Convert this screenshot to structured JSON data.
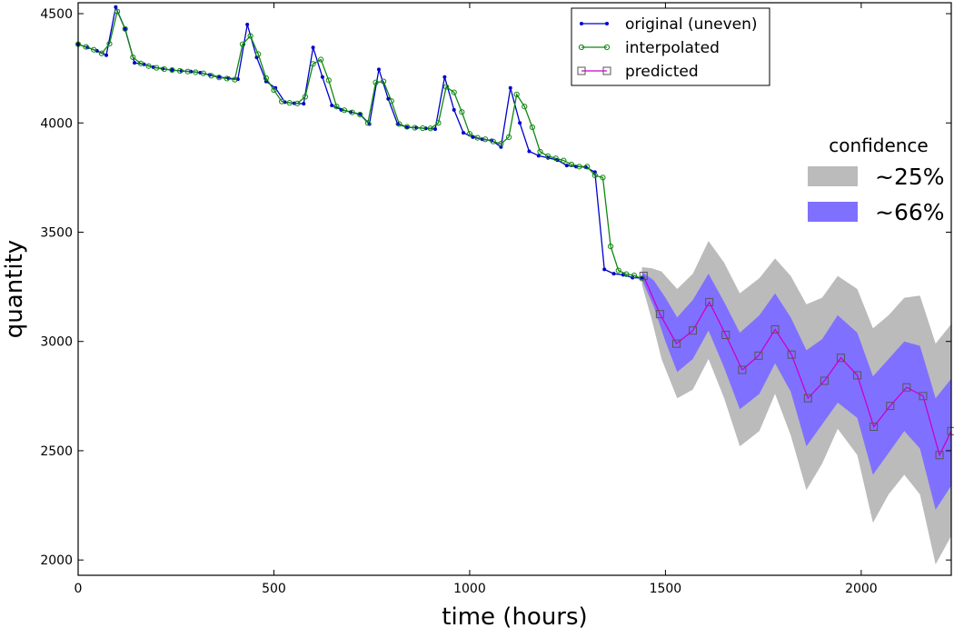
{
  "chart_data": {
    "type": "line",
    "xlabel": "time (hours)",
    "ylabel": "quantity",
    "xlim": [
      0,
      2230
    ],
    "ylim": [
      1930,
      4550
    ],
    "x_ticks": [
      0,
      500,
      1000,
      1500,
      2000
    ],
    "y_ticks": [
      2000,
      2500,
      3000,
      3500,
      4000,
      4500
    ],
    "grid": false,
    "legend_position": "top-center",
    "series": [
      {
        "name": "original (uneven)",
        "color": "#0000cc",
        "marker": "dot",
        "points": [
          [
            0,
            4360
          ],
          [
            24,
            4345
          ],
          [
            48,
            4330
          ],
          [
            72,
            4310
          ],
          [
            96,
            4530
          ],
          [
            120,
            4430
          ],
          [
            144,
            4275
          ],
          [
            168,
            4268
          ],
          [
            192,
            4255
          ],
          [
            216,
            4248
          ],
          [
            240,
            4242
          ],
          [
            264,
            4238
          ],
          [
            288,
            4235
          ],
          [
            312,
            4230
          ],
          [
            336,
            4220
          ],
          [
            360,
            4210
          ],
          [
            384,
            4205
          ],
          [
            408,
            4200
          ],
          [
            432,
            4450
          ],
          [
            456,
            4300
          ],
          [
            480,
            4190
          ],
          [
            504,
            4160
          ],
          [
            528,
            4095
          ],
          [
            552,
            4090
          ],
          [
            576,
            4088
          ],
          [
            600,
            4345
          ],
          [
            624,
            4210
          ],
          [
            648,
            4080
          ],
          [
            672,
            4060
          ],
          [
            696,
            4050
          ],
          [
            720,
            4040
          ],
          [
            744,
            3995
          ],
          [
            768,
            4245
          ],
          [
            792,
            4110
          ],
          [
            816,
            3995
          ],
          [
            840,
            3980
          ],
          [
            864,
            3978
          ],
          [
            888,
            3975
          ],
          [
            912,
            3972
          ],
          [
            936,
            4210
          ],
          [
            960,
            4060
          ],
          [
            984,
            3955
          ],
          [
            1008,
            3935
          ],
          [
            1032,
            3925
          ],
          [
            1056,
            3920
          ],
          [
            1080,
            3890
          ],
          [
            1104,
            4160
          ],
          [
            1128,
            4000
          ],
          [
            1152,
            3870
          ],
          [
            1176,
            3850
          ],
          [
            1200,
            3840
          ],
          [
            1224,
            3830
          ],
          [
            1248,
            3805
          ],
          [
            1272,
            3800
          ],
          [
            1296,
            3798
          ],
          [
            1320,
            3775
          ],
          [
            1344,
            3330
          ],
          [
            1368,
            3310
          ],
          [
            1392,
            3305
          ],
          [
            1416,
            3292
          ],
          [
            1440,
            3290
          ]
        ]
      },
      {
        "name": "interpolated",
        "color": "#118811",
        "marker": "circle",
        "points": [
          [
            0,
            4360
          ],
          [
            20,
            4348
          ],
          [
            40,
            4335
          ],
          [
            60,
            4318
          ],
          [
            80,
            4362
          ],
          [
            100,
            4510
          ],
          [
            120,
            4430
          ],
          [
            140,
            4300
          ],
          [
            160,
            4272
          ],
          [
            180,
            4260
          ],
          [
            200,
            4252
          ],
          [
            220,
            4246
          ],
          [
            240,
            4242
          ],
          [
            260,
            4238
          ],
          [
            280,
            4235
          ],
          [
            300,
            4232
          ],
          [
            320,
            4227
          ],
          [
            340,
            4216
          ],
          [
            360,
            4208
          ],
          [
            380,
            4203
          ],
          [
            400,
            4198
          ],
          [
            420,
            4360
          ],
          [
            440,
            4398
          ],
          [
            460,
            4315
          ],
          [
            480,
            4205
          ],
          [
            500,
            4150
          ],
          [
            520,
            4098
          ],
          [
            540,
            4092
          ],
          [
            560,
            4089
          ],
          [
            580,
            4120
          ],
          [
            600,
            4270
          ],
          [
            620,
            4290
          ],
          [
            640,
            4195
          ],
          [
            660,
            4075
          ],
          [
            680,
            4058
          ],
          [
            700,
            4048
          ],
          [
            720,
            4038
          ],
          [
            740,
            4000
          ],
          [
            760,
            4185
          ],
          [
            780,
            4190
          ],
          [
            800,
            4100
          ],
          [
            820,
            3995
          ],
          [
            840,
            3982
          ],
          [
            860,
            3978
          ],
          [
            880,
            3976
          ],
          [
            900,
            3975
          ],
          [
            920,
            4000
          ],
          [
            940,
            4165
          ],
          [
            960,
            4140
          ],
          [
            980,
            4050
          ],
          [
            1000,
            3950
          ],
          [
            1020,
            3932
          ],
          [
            1040,
            3925
          ],
          [
            1060,
            3915
          ],
          [
            1080,
            3905
          ],
          [
            1100,
            3935
          ],
          [
            1120,
            4130
          ],
          [
            1140,
            4075
          ],
          [
            1160,
            3980
          ],
          [
            1180,
            3868
          ],
          [
            1200,
            3848
          ],
          [
            1220,
            3838
          ],
          [
            1240,
            3828
          ],
          [
            1260,
            3810
          ],
          [
            1280,
            3800
          ],
          [
            1300,
            3800
          ],
          [
            1320,
            3760
          ],
          [
            1340,
            3750
          ],
          [
            1360,
            3435
          ],
          [
            1380,
            3325
          ],
          [
            1400,
            3308
          ],
          [
            1420,
            3302
          ],
          [
            1440,
            3288
          ]
        ]
      },
      {
        "name": "predicted",
        "color": "#cc00cc",
        "marker": "square",
        "points": [
          [
            1444,
            3300
          ],
          [
            1486,
            3125
          ],
          [
            1528,
            2990
          ],
          [
            1570,
            3050
          ],
          [
            1612,
            3180
          ],
          [
            1654,
            3030
          ],
          [
            1696,
            2870
          ],
          [
            1738,
            2935
          ],
          [
            1780,
            3055
          ],
          [
            1822,
            2940
          ],
          [
            1864,
            2740
          ],
          [
            1906,
            2820
          ],
          [
            1948,
            2925
          ],
          [
            1990,
            2845
          ],
          [
            2032,
            2610
          ],
          [
            2074,
            2705
          ],
          [
            2116,
            2790
          ],
          [
            2158,
            2750
          ],
          [
            2200,
            2480
          ],
          [
            2230,
            2590
          ]
        ]
      }
    ],
    "confidence_bands": [
      {
        "name": "~25%",
        "color": "#bbbbbb",
        "points": [
          [
            1440,
            3340,
            3260
          ],
          [
            1465,
            3335,
            3100
          ],
          [
            1490,
            3320,
            2920
          ],
          [
            1530,
            3240,
            2740
          ],
          [
            1570,
            3310,
            2780
          ],
          [
            1610,
            3460,
            2920
          ],
          [
            1650,
            3360,
            2740
          ],
          [
            1690,
            3220,
            2520
          ],
          [
            1740,
            3290,
            2590
          ],
          [
            1780,
            3380,
            2760
          ],
          [
            1820,
            3300,
            2570
          ],
          [
            1860,
            3170,
            2320
          ],
          [
            1900,
            3200,
            2440
          ],
          [
            1940,
            3300,
            2600
          ],
          [
            1990,
            3240,
            2480
          ],
          [
            2030,
            3060,
            2170
          ],
          [
            2070,
            3120,
            2300
          ],
          [
            2110,
            3200,
            2390
          ],
          [
            2150,
            3210,
            2300
          ],
          [
            2190,
            2990,
            1980
          ],
          [
            2230,
            3080,
            2110
          ]
        ]
      },
      {
        "name": "~66%",
        "color": "#8070ff",
        "points": [
          [
            1440,
            3318,
            3282
          ],
          [
            1470,
            3280,
            3160
          ],
          [
            1500,
            3200,
            3000
          ],
          [
            1530,
            3110,
            2860
          ],
          [
            1570,
            3190,
            2920
          ],
          [
            1610,
            3310,
            3050
          ],
          [
            1650,
            3180,
            2880
          ],
          [
            1690,
            3040,
            2690
          ],
          [
            1740,
            3120,
            2760
          ],
          [
            1780,
            3220,
            2900
          ],
          [
            1820,
            3110,
            2770
          ],
          [
            1860,
            2960,
            2520
          ],
          [
            1900,
            3010,
            2620
          ],
          [
            1940,
            3120,
            2720
          ],
          [
            1990,
            3040,
            2650
          ],
          [
            2030,
            2840,
            2390
          ],
          [
            2070,
            2920,
            2490
          ],
          [
            2110,
            3000,
            2590
          ],
          [
            2150,
            2980,
            2510
          ],
          [
            2190,
            2740,
            2230
          ],
          [
            2230,
            2830,
            2340
          ]
        ]
      }
    ],
    "confidence_legend_title": "confidence"
  }
}
